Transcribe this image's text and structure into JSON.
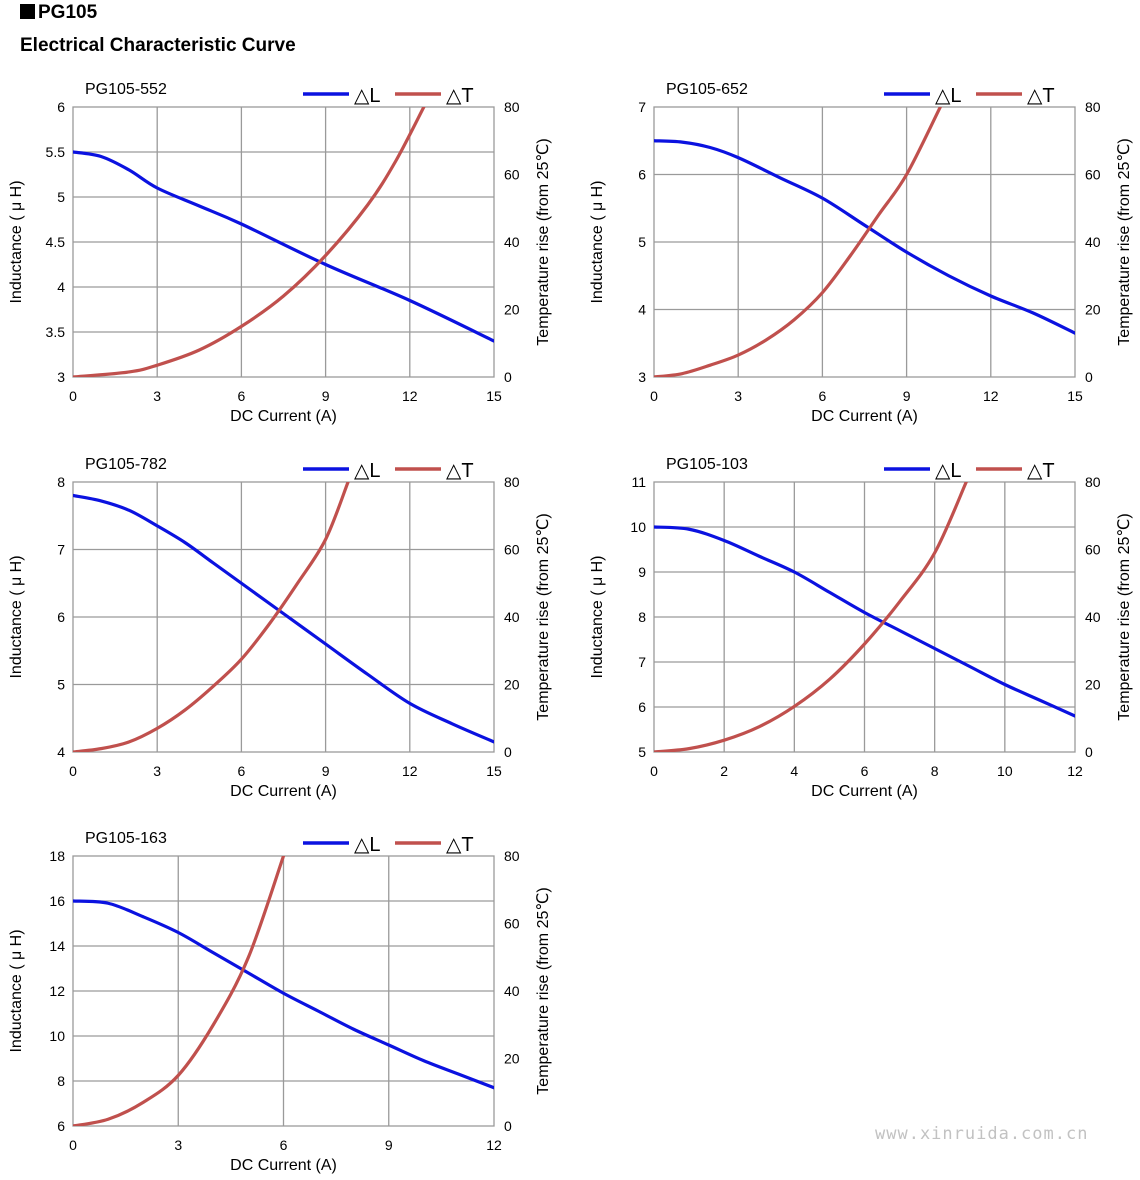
{
  "header": {
    "model": "PG105",
    "title": "Electrical Characteristic Curve"
  },
  "watermark": "www.xinruida.com.cn",
  "colors": {
    "inductance": "#0b12e0",
    "temperature": "#c0504d",
    "grid": "#9a9a9a"
  },
  "chart_data": [
    {
      "type": "line",
      "title": "PG105-552",
      "xlabel": "DC Current (A)",
      "ylabel": "Inductance ( μ H)",
      "y2label": "Temperature rise (from 25℃)",
      "xlim": [
        0,
        15
      ],
      "xticks": [
        0,
        3,
        6,
        9,
        12,
        15
      ],
      "ylim": [
        3,
        6
      ],
      "yticks": [
        3,
        3.5,
        4,
        4.5,
        5,
        5.5,
        6
      ],
      "y2lim": [
        0,
        80
      ],
      "y2ticks": [
        0,
        20,
        40,
        60,
        80
      ],
      "legend": [
        "△L",
        "△T"
      ],
      "series": [
        {
          "name": "△L",
          "axis": "left",
          "points": [
            [
              0,
              5.5
            ],
            [
              1,
              5.45
            ],
            [
              2,
              5.3
            ],
            [
              3,
              5.1
            ],
            [
              4.5,
              4.9
            ],
            [
              6,
              4.7
            ],
            [
              9,
              4.25
            ],
            [
              12,
              3.85
            ],
            [
              15,
              3.4
            ]
          ]
        },
        {
          "name": "△T",
          "axis": "right",
          "points": [
            [
              0,
              0
            ],
            [
              2,
              1.5
            ],
            [
              3,
              3.5
            ],
            [
              4.5,
              8
            ],
            [
              6,
              15
            ],
            [
              7.5,
              24
            ],
            [
              9,
              36
            ],
            [
              10.5,
              51
            ],
            [
              11.5,
              64
            ],
            [
              12.5,
              80
            ]
          ]
        }
      ]
    },
    {
      "type": "line",
      "title": "PG105-652",
      "xlabel": "DC Current (A)",
      "ylabel": "Inductance ( μ H)",
      "y2label": "Temperature rise (from 25℃)",
      "xlim": [
        0,
        15
      ],
      "xticks": [
        0,
        3,
        6,
        9,
        12,
        15
      ],
      "ylim": [
        3,
        7
      ],
      "yticks": [
        3,
        4,
        5,
        6,
        7
      ],
      "y2lim": [
        0,
        80
      ],
      "y2ticks": [
        0,
        20,
        40,
        60,
        80
      ],
      "legend": [
        "△L",
        "△T"
      ],
      "series": [
        {
          "name": "△L",
          "axis": "left",
          "points": [
            [
              0,
              6.5
            ],
            [
              1,
              6.48
            ],
            [
              2,
              6.4
            ],
            [
              3,
              6.25
            ],
            [
              4.5,
              5.95
            ],
            [
              6,
              5.65
            ],
            [
              7.5,
              5.25
            ],
            [
              9,
              4.85
            ],
            [
              10.5,
              4.5
            ],
            [
              12,
              4.2
            ],
            [
              13.5,
              3.95
            ],
            [
              15,
              3.65
            ]
          ]
        },
        {
          "name": "△T",
          "axis": "right",
          "points": [
            [
              0,
              0
            ],
            [
              1,
              1
            ],
            [
              2,
              3.5
            ],
            [
              3,
              6.5
            ],
            [
              4,
              11
            ],
            [
              5,
              17
            ],
            [
              6,
              25
            ],
            [
              7,
              36
            ],
            [
              8,
              48
            ],
            [
              9,
              60
            ],
            [
              10.2,
              80
            ]
          ]
        }
      ]
    },
    {
      "type": "line",
      "title": "PG105-782",
      "xlabel": "DC Current (A)",
      "ylabel": "Inductance ( μ H)",
      "y2label": "Temperature rise (from 25℃)",
      "xlim": [
        0,
        15
      ],
      "xticks": [
        0,
        3,
        6,
        9,
        12,
        15
      ],
      "ylim": [
        4,
        8
      ],
      "yticks": [
        4,
        5,
        6,
        7,
        8
      ],
      "y2lim": [
        0,
        80
      ],
      "y2ticks": [
        0,
        20,
        40,
        60,
        80
      ],
      "legend": [
        "△L",
        "△T"
      ],
      "series": [
        {
          "name": "△L",
          "axis": "left",
          "points": [
            [
              0,
              7.8
            ],
            [
              1,
              7.72
            ],
            [
              2,
              7.58
            ],
            [
              3,
              7.35
            ],
            [
              4,
              7.1
            ],
            [
              5,
              6.8
            ],
            [
              6,
              6.5
            ],
            [
              7.5,
              6.05
            ],
            [
              9,
              5.6
            ],
            [
              10.5,
              5.15
            ],
            [
              12,
              4.72
            ],
            [
              13.5,
              4.42
            ],
            [
              15,
              4.15
            ]
          ]
        },
        {
          "name": "△T",
          "axis": "right",
          "points": [
            [
              0,
              0
            ],
            [
              1,
              1
            ],
            [
              2,
              3
            ],
            [
              3,
              7
            ],
            [
              4,
              12.5
            ],
            [
              5,
              19.5
            ],
            [
              6,
              27.5
            ],
            [
              7,
              38
            ],
            [
              8,
              50
            ],
            [
              9,
              63
            ],
            [
              9.8,
              80
            ]
          ]
        }
      ]
    },
    {
      "type": "line",
      "title": "PG105-103",
      "xlabel": "DC Current (A)",
      "ylabel": "Inductance ( μ H)",
      "y2label": "Temperature rise (from 25℃)",
      "xlim": [
        0,
        12
      ],
      "xticks": [
        0,
        2,
        4,
        6,
        8,
        10,
        12
      ],
      "ylim": [
        5,
        11
      ],
      "yticks": [
        5,
        6,
        7,
        8,
        9,
        10,
        11
      ],
      "y2lim": [
        0,
        80
      ],
      "y2ticks": [
        0,
        20,
        40,
        60,
        80
      ],
      "legend": [
        "△L",
        "△T"
      ],
      "series": [
        {
          "name": "△L",
          "axis": "left",
          "points": [
            [
              0,
              10
            ],
            [
              1,
              9.95
            ],
            [
              2,
              9.7
            ],
            [
              3,
              9.35
            ],
            [
              4,
              9.0
            ],
            [
              5,
              8.55
            ],
            [
              6,
              8.1
            ],
            [
              7,
              7.7
            ],
            [
              8,
              7.3
            ],
            [
              9,
              6.9
            ],
            [
              10,
              6.5
            ],
            [
              11,
              6.15
            ],
            [
              12,
              5.8
            ]
          ]
        },
        {
          "name": "△T",
          "axis": "right",
          "points": [
            [
              0,
              0
            ],
            [
              1,
              1
            ],
            [
              2,
              3.5
            ],
            [
              3,
              7.5
            ],
            [
              4,
              13.5
            ],
            [
              5,
              21.5
            ],
            [
              6,
              32
            ],
            [
              7,
              44.5
            ],
            [
              8,
              59
            ],
            [
              8.9,
              80
            ]
          ]
        }
      ]
    },
    {
      "type": "line",
      "title": "PG105-163",
      "xlabel": "DC Current (A)",
      "ylabel": "Inductance ( μ H)",
      "y2label": "Temperature rise (from 25℃)",
      "xlim": [
        0,
        12
      ],
      "xticks": [
        0,
        3,
        6,
        9,
        12
      ],
      "ylim": [
        6,
        18
      ],
      "yticks": [
        6,
        8,
        10,
        12,
        14,
        16,
        18
      ],
      "y2lim": [
        0,
        80
      ],
      "y2ticks": [
        0,
        20,
        40,
        60,
        80
      ],
      "legend": [
        "△L",
        "△T"
      ],
      "series": [
        {
          "name": "△L",
          "axis": "left",
          "points": [
            [
              0,
              16
            ],
            [
              1,
              15.9
            ],
            [
              2,
              15.3
            ],
            [
              3,
              14.6
            ],
            [
              4,
              13.7
            ],
            [
              5,
              12.8
            ],
            [
              6,
              11.9
            ],
            [
              7,
              11.1
            ],
            [
              8,
              10.3
            ],
            [
              9,
              9.6
            ],
            [
              10,
              8.9
            ],
            [
              11,
              8.3
            ],
            [
              12,
              7.7
            ]
          ]
        },
        {
          "name": "△T",
          "axis": "right",
          "points": [
            [
              0,
              0
            ],
            [
              1,
              2
            ],
            [
              2,
              7
            ],
            [
              3,
              15
            ],
            [
              4,
              30
            ],
            [
              5,
              50
            ],
            [
              6,
              80
            ]
          ]
        }
      ]
    }
  ]
}
